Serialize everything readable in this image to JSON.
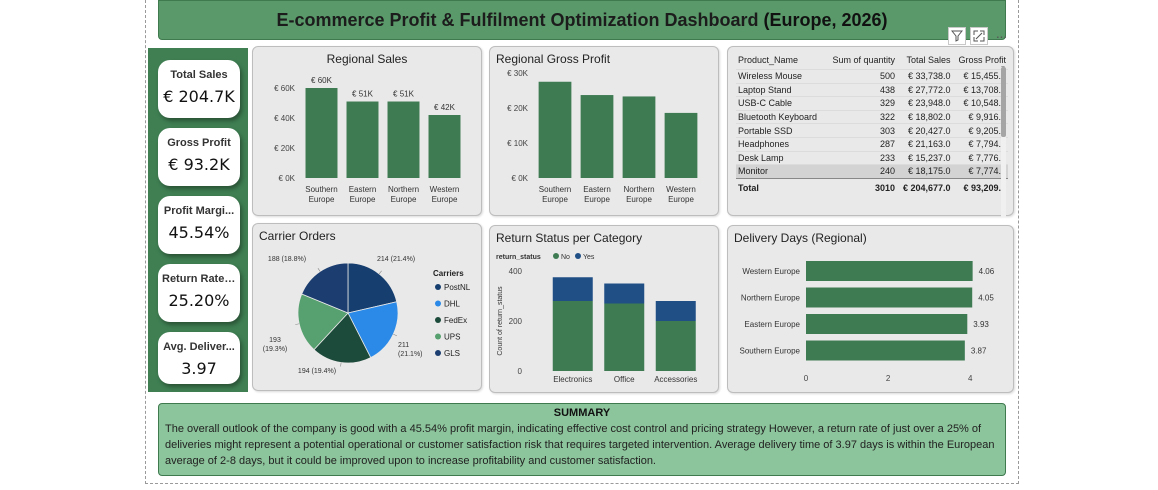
{
  "dashboard": {
    "title": "E-commerce Profit & Fulfilment Optimization Dashboard",
    "title_suffix": "(Europe, 2026)"
  },
  "kpis": [
    {
      "label": "Total Sales",
      "value": "€ 204.7K"
    },
    {
      "label": "Gross Profit",
      "value": "€ 93.2K"
    },
    {
      "label": "Profit Margi...",
      "value": "45.54%"
    },
    {
      "label": "Return Rate %",
      "value": "25.20%"
    },
    {
      "label": "Avg. Deliver...",
      "value": "3.97"
    }
  ],
  "visual_header": {
    "filter_icon": "filter-icon",
    "focus_icon": "focus-mode-icon",
    "more": "···"
  },
  "colors": {
    "bar": "#3e7b53",
    "dark_bar": "#1f4f85",
    "no": "#3e7b53",
    "yes": "#1f4f85",
    "accent": "#5a9a6a"
  },
  "charts": {
    "regional_sales": {
      "type": "bar",
      "title": "Regional Sales",
      "categories": [
        "Southern\nEurope",
        "Eastern\nEurope",
        "Northern\nEurope",
        "Western\nEurope"
      ],
      "values": [
        60,
        51,
        51,
        42
      ],
      "data_labels": [
        "€ 60K",
        "€ 51K",
        "€ 51K",
        "€ 42K"
      ],
      "y_ticks": [
        "€ 0K",
        "€ 20K",
        "€ 40K",
        "€ 60K"
      ],
      "ylim": [
        0,
        60
      ]
    },
    "regional_gross_profit": {
      "type": "bar",
      "title": "Regional Gross Profit",
      "categories": [
        "Southern\nEurope",
        "Eastern\nEurope",
        "Northern\nEurope",
        "Western\nEurope"
      ],
      "values": [
        27.5,
        23.7,
        23.3,
        18.6
      ],
      "y_ticks": [
        "€ 0K",
        "€ 10K",
        "€ 20K",
        "€ 30K"
      ],
      "ylim": [
        0,
        30
      ]
    },
    "carrier_orders": {
      "type": "pie",
      "title": "Carrier Orders",
      "legend_title": "Carriers",
      "slices": [
        {
          "name": "PostNL",
          "value": 214,
          "label": "214 (21.4%)",
          "color": "#163e6e"
        },
        {
          "name": "DHL",
          "value": 211,
          "label": "211\n(21.1%)",
          "color": "#2b8ae8"
        },
        {
          "name": "FedEx",
          "value": 194,
          "label": "194 (19.4%)",
          "color": "#1c4a3b"
        },
        {
          "name": "UPS",
          "value": 193,
          "label": "193\n(19.3%)",
          "color": "#57a06f"
        },
        {
          "name": "GLS",
          "value": 188,
          "label": "188 (18.8%)",
          "color": "#1b3d70"
        }
      ]
    },
    "return_status": {
      "type": "bar",
      "title": "Return Status per Category",
      "legend_title": "return_status",
      "legend": [
        "No",
        "Yes"
      ],
      "ylabel": "Count of return_status",
      "categories": [
        "Electronics",
        "Office",
        "Accessories"
      ],
      "series": [
        {
          "name": "No",
          "values": [
            280,
            270,
            200
          ]
        },
        {
          "name": "Yes",
          "values": [
            95,
            80,
            80
          ]
        }
      ],
      "y_ticks": [
        "0",
        "200",
        "400"
      ],
      "ylim": [
        0,
        400
      ]
    },
    "delivery_days": {
      "type": "bar",
      "title": "Delivery Days (Regional)",
      "categories": [
        "Western Europe",
        "Northern Europe",
        "Eastern Europe",
        "Southern Europe"
      ],
      "values": [
        4.06,
        4.05,
        3.93,
        3.87
      ],
      "data_labels": [
        "4.06",
        "4.05",
        "3.93",
        "3.87"
      ],
      "x_ticks": [
        "0",
        "2",
        "4"
      ],
      "xlim": [
        0,
        4.8
      ]
    }
  },
  "product_table": {
    "columns": [
      "Product_Name",
      "Sum of quantity",
      "Total Sales",
      "Gross Profit"
    ],
    "rows": [
      [
        "Wireless Mouse",
        "500",
        "€ 33,738.0",
        "€ 15,455.0"
      ],
      [
        "Laptop Stand",
        "438",
        "€ 27,772.0",
        "€ 13,708.0"
      ],
      [
        "USB-C Cable",
        "329",
        "€ 23,948.0",
        "€ 10,548.0"
      ],
      [
        "Bluetooth Keyboard",
        "322",
        "€ 18,802.0",
        "€ 9,916.0"
      ],
      [
        "Portable SSD",
        "303",
        "€ 20,427.0",
        "€ 9,205.0"
      ],
      [
        "Headphones",
        "287",
        "€ 21,163.0",
        "€ 7,794.0"
      ],
      [
        "Desk Lamp",
        "233",
        "€ 15,237.0",
        "€ 7,776.0"
      ],
      [
        "Monitor",
        "240",
        "€ 18,175.0",
        "€ 7,774.0"
      ]
    ],
    "total": [
      "Total",
      "3010",
      "€ 204,677.0",
      "€ 93,209.0"
    ]
  },
  "summary": {
    "heading": "SUMMARY",
    "body": "The overall outlook of the company is good with a 45.54% profit margin, indicating effective cost control and pricing strategy However, a return rate of just over a 25% of deliveries might represent a potential operational or customer satisfaction risk that requires targeted intervention. Average delivery time of 3.97 days is within the European average of 2-8 days, but it could be improved upon to increase profitability and customer satisfaction."
  }
}
